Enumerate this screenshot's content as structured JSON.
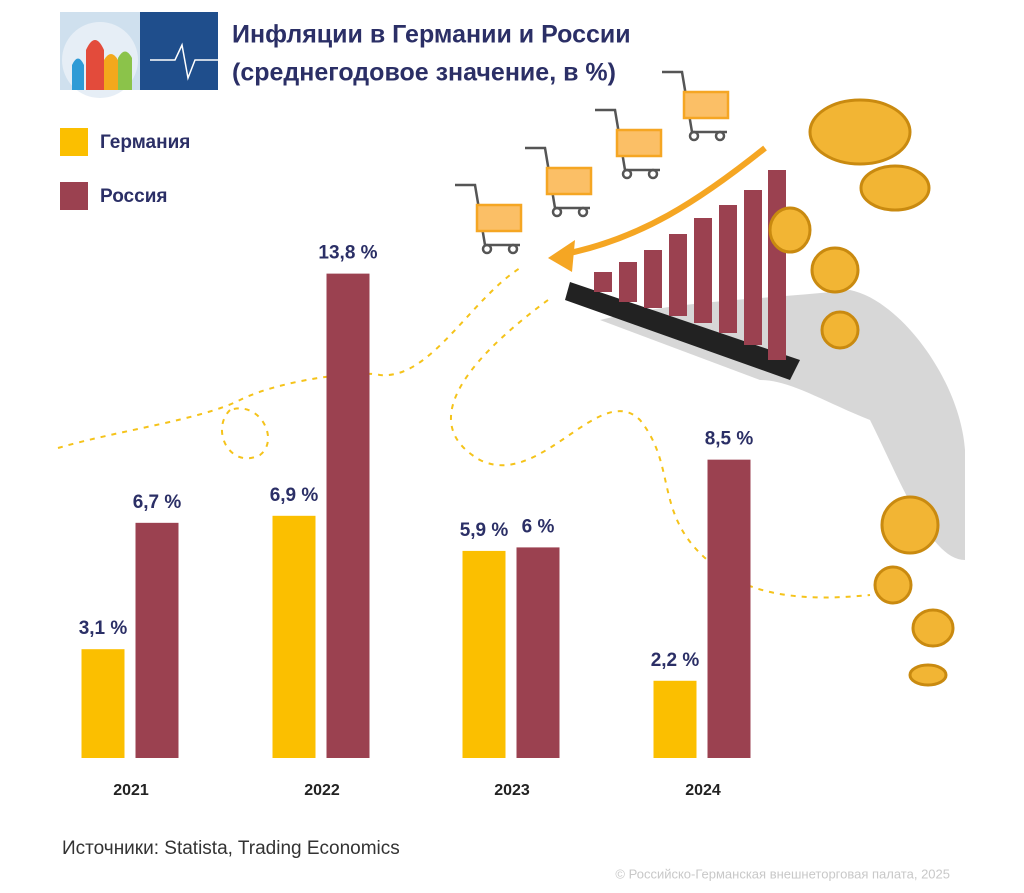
{
  "chart_data": {
    "type": "bar",
    "title": "Инфляции в Германии и России",
    "subtitle": "(среднегодовое значение, в %)",
    "categories": [
      "2021",
      "2022",
      "2023",
      "2024"
    ],
    "series": [
      {
        "name": "Германия",
        "color": "#fbbf00",
        "values": [
          3.1,
          6.9,
          5.9,
          2.2
        ],
        "value_labels": [
          "3,1 %",
          "6,9 %",
          "5,9 %",
          "2,2 %"
        ]
      },
      {
        "name": "Россия",
        "color": "#9b4150",
        "values": [
          6.7,
          13.8,
          6,
          8.5
        ],
        "value_labels": [
          "6,7 %",
          "13,8 %",
          "6 %",
          "8,5 %"
        ]
      }
    ],
    "source": "Источники: Statista, Trading Economics",
    "copyright": "© Российско-Германская внешнеторговая палата, 2025"
  }
}
